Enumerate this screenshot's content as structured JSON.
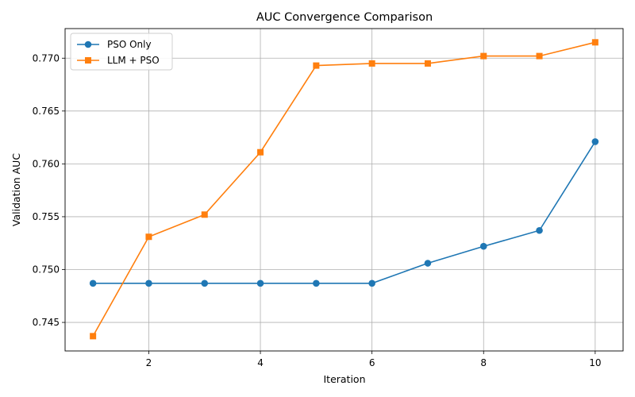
{
  "chart_data": {
    "type": "line",
    "title": "AUC Convergence Comparison",
    "xlabel": "Iteration",
    "ylabel": "Validation AUC",
    "x": [
      1,
      2,
      3,
      4,
      5,
      6,
      7,
      8,
      9,
      10
    ],
    "xlim": [
      0.5,
      10.5
    ],
    "ylim": [
      0.7423,
      0.7728
    ],
    "xticks": [
      2,
      4,
      6,
      8,
      10
    ],
    "xtick_labels": [
      "2",
      "4",
      "6",
      "8",
      "10"
    ],
    "yticks": [
      0.745,
      0.75,
      0.755,
      0.76,
      0.765,
      0.77
    ],
    "ytick_labels": [
      "0.745",
      "0.750",
      "0.755",
      "0.760",
      "0.765",
      "0.770"
    ],
    "grid": true,
    "legend_position": "top-left",
    "series": [
      {
        "name": "PSO Only",
        "color": "#1f77b4",
        "marker": "circle",
        "values": [
          0.7487,
          0.7487,
          0.7487,
          0.7487,
          0.7487,
          0.7487,
          0.7506,
          0.7522,
          0.7537,
          0.7621
        ]
      },
      {
        "name": "LLM + PSO",
        "color": "#ff7f0e",
        "marker": "square",
        "values": [
          0.7437,
          0.7531,
          0.7552,
          0.7611,
          0.7693,
          0.7695,
          0.7695,
          0.7702,
          0.7702,
          0.7715
        ]
      }
    ]
  }
}
